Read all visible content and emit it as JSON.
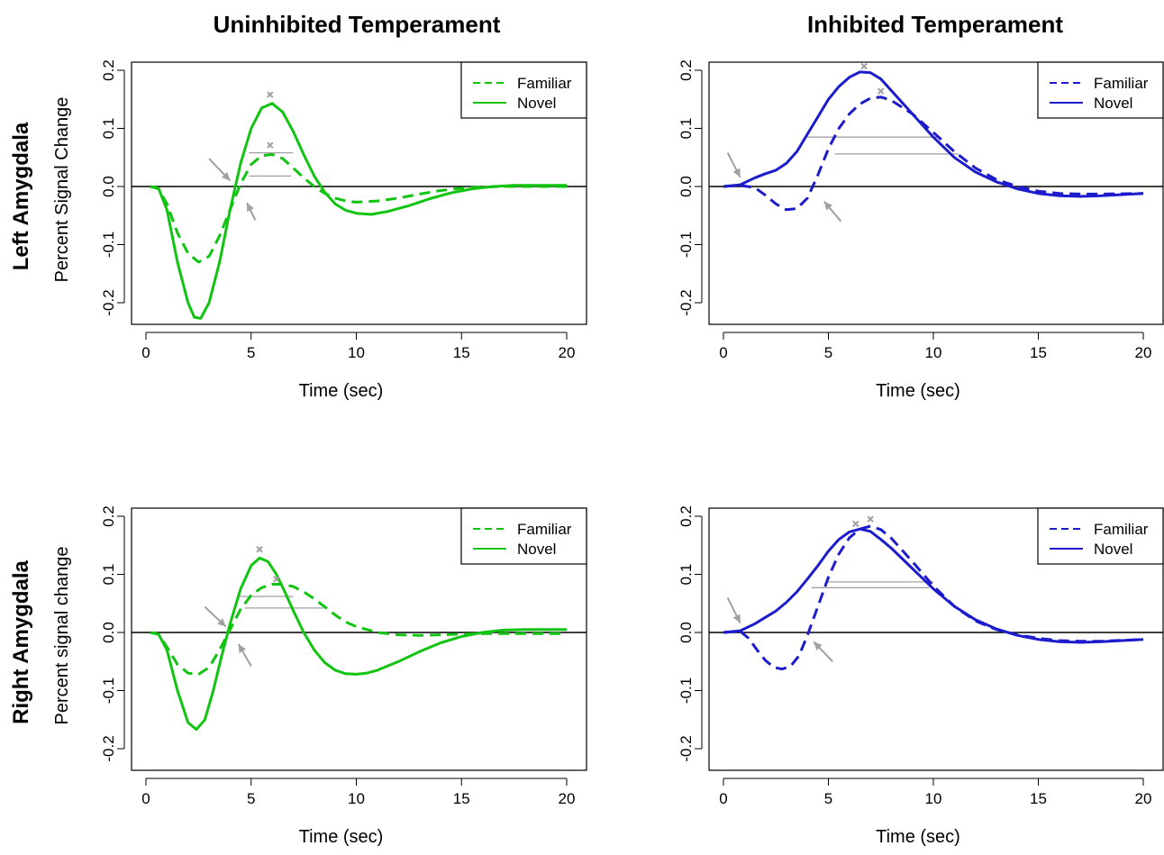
{
  "colors": {
    "green": "#11c411",
    "blue": "#1c1ccc",
    "annotation_gray": "#a0a0a0",
    "axis": "#000000",
    "background": "#ffffff"
  },
  "figure": {
    "column_titles": [
      "Uninhibited Temperament",
      "Inhibited Temperament"
    ],
    "row_titles": [
      "Left Amygdala",
      "Right Amygdala"
    ],
    "ylabels": [
      "Percent Signal Change",
      "Percent signal change"
    ]
  },
  "chart_data": [
    {
      "type": "line",
      "panel": "top-left",
      "color": "green",
      "xlabel": "Time (sec)",
      "ylabel": "Percent Signal Change",
      "xlim": [
        0,
        20
      ],
      "ylim": [
        -0.2,
        0.2
      ],
      "xticks": [
        "0",
        "5",
        "10",
        "15",
        "20"
      ],
      "yticks": [
        "-0.2",
        "-0.1",
        "0.0",
        "0.1",
        "0.2"
      ],
      "zero_line": true,
      "legend": {
        "position": "top-right",
        "entries": [
          "Familiar",
          "Novel"
        ]
      },
      "series": [
        {
          "name": "Familiar",
          "dash": "dashed",
          "x": [
            0.2,
            0.6,
            1.0,
            1.5,
            2.0,
            2.5,
            3.0,
            3.5,
            4.0,
            4.5,
            5.0,
            5.5,
            6.0,
            6.5,
            7.0,
            7.5,
            8.0,
            8.5,
            9.0,
            9.5,
            10.0,
            11.0,
            12.0,
            13.0,
            14.0,
            15.0,
            16.0,
            17.0,
            18.0,
            20.0
          ],
          "y": [
            0.0,
            -0.004,
            -0.03,
            -0.08,
            -0.115,
            -0.13,
            -0.12,
            -0.085,
            -0.04,
            0.005,
            0.038,
            0.053,
            0.055,
            0.048,
            0.032,
            0.015,
            0.0,
            -0.012,
            -0.02,
            -0.025,
            -0.027,
            -0.025,
            -0.02,
            -0.013,
            -0.007,
            -0.003,
            -0.001,
            0.0,
            0.0,
            0.0
          ]
        },
        {
          "name": "Novel",
          "dash": "solid",
          "x": [
            0.2,
            0.6,
            1.0,
            1.5,
            2.0,
            2.3,
            2.6,
            3.0,
            3.5,
            4.0,
            4.5,
            5.0,
            5.5,
            6.0,
            6.5,
            7.0,
            7.5,
            8.0,
            8.5,
            9.0,
            9.5,
            10.0,
            10.7,
            11.5,
            12.5,
            13.5,
            14.5,
            15.5,
            16.5,
            17.5,
            20.0
          ],
          "y": [
            0.0,
            -0.003,
            -0.04,
            -0.13,
            -0.2,
            -0.225,
            -0.227,
            -0.2,
            -0.13,
            -0.04,
            0.04,
            0.1,
            0.135,
            0.143,
            0.128,
            0.095,
            0.055,
            0.018,
            -0.01,
            -0.03,
            -0.041,
            -0.046,
            -0.048,
            -0.043,
            -0.033,
            -0.021,
            -0.011,
            -0.004,
            0.0,
            0.002,
            0.002
          ]
        }
      ],
      "annotations": {
        "peaks": [
          {
            "x": 5.9,
            "y": 0.158
          },
          {
            "x": 5.9,
            "y": 0.071
          }
        ],
        "hlines": [
          {
            "x1": 4.9,
            "x2": 7.0,
            "y": 0.058
          },
          {
            "x1": 4.9,
            "x2": 6.9,
            "y": 0.018
          }
        ],
        "arrows": [
          {
            "x1": 3.0,
            "y1": 0.048,
            "x2": 4.0,
            "y2": 0.01
          },
          {
            "x1": 5.2,
            "y1": -0.058,
            "x2": 4.8,
            "y2": -0.028
          }
        ]
      }
    },
    {
      "type": "line",
      "panel": "top-right",
      "color": "blue",
      "xlabel": "Time (sec)",
      "ylabel": "",
      "xlim": [
        0,
        20
      ],
      "ylim": [
        -0.2,
        0.2
      ],
      "xticks": [
        "0",
        "5",
        "10",
        "15",
        "20"
      ],
      "yticks": [
        "-0.2",
        "-0.1",
        "0.0",
        "0.1",
        "0.2"
      ],
      "zero_line": true,
      "legend": {
        "position": "top-right",
        "entries": [
          "Familiar",
          "Novel"
        ]
      },
      "series": [
        {
          "name": "Familiar",
          "dash": "dashed",
          "x": [
            0.0,
            0.8,
            1.5,
            2.0,
            2.5,
            3.0,
            3.5,
            4.0,
            4.5,
            5.0,
            5.5,
            6.0,
            6.5,
            7.0,
            7.5,
            8.0,
            9.0,
            10.0,
            11.0,
            12.0,
            13.0,
            14.0,
            15.0,
            16.0,
            17.0,
            18.0,
            20.0
          ],
          "y": [
            0.0,
            0.002,
            -0.002,
            -0.015,
            -0.03,
            -0.04,
            -0.038,
            -0.02,
            0.02,
            0.065,
            0.1,
            0.125,
            0.142,
            0.152,
            0.154,
            0.148,
            0.125,
            0.093,
            0.06,
            0.032,
            0.012,
            0.0,
            -0.008,
            -0.012,
            -0.013,
            -0.013,
            -0.012
          ]
        },
        {
          "name": "Novel",
          "dash": "solid",
          "x": [
            0.0,
            0.8,
            1.5,
            2.0,
            2.5,
            3.0,
            3.5,
            4.0,
            4.5,
            5.0,
            5.5,
            6.0,
            6.5,
            7.0,
            7.5,
            8.0,
            9.0,
            10.0,
            11.0,
            12.0,
            13.0,
            14.0,
            15.0,
            16.0,
            17.0,
            18.0,
            20.0
          ],
          "y": [
            0.0,
            0.003,
            0.015,
            0.022,
            0.028,
            0.04,
            0.06,
            0.09,
            0.12,
            0.15,
            0.172,
            0.188,
            0.197,
            0.196,
            0.185,
            0.165,
            0.125,
            0.085,
            0.05,
            0.025,
            0.008,
            -0.004,
            -0.012,
            -0.016,
            -0.017,
            -0.016,
            -0.012
          ]
        }
      ],
      "annotations": {
        "peaks": [
          {
            "x": 6.7,
            "y": 0.207
          },
          {
            "x": 7.5,
            "y": 0.164
          }
        ],
        "hlines": [
          {
            "x1": 4.0,
            "x2": 10.2,
            "y": 0.085
          },
          {
            "x1": 5.3,
            "x2": 11.2,
            "y": 0.056
          }
        ],
        "arrows": [
          {
            "x1": 0.2,
            "y1": 0.058,
            "x2": 0.8,
            "y2": 0.016
          },
          {
            "x1": 5.6,
            "y1": -0.06,
            "x2": 4.8,
            "y2": -0.026
          }
        ]
      }
    },
    {
      "type": "line",
      "panel": "bottom-left",
      "color": "green",
      "xlabel": "Time (sec)",
      "ylabel": "Percent signal change",
      "xlim": [
        0,
        20
      ],
      "ylim": [
        -0.2,
        0.2
      ],
      "xticks": [
        "0",
        "5",
        "10",
        "15",
        "20"
      ],
      "yticks": [
        "-0.2",
        "-0.1",
        "0.0",
        "0.1",
        "0.2"
      ],
      "zero_line": true,
      "legend": {
        "position": "top-right",
        "entries": [
          "Familiar",
          "Novel"
        ]
      },
      "series": [
        {
          "name": "Familiar",
          "dash": "dashed",
          "x": [
            0.2,
            0.6,
            1.0,
            1.5,
            2.0,
            2.5,
            3.0,
            3.5,
            4.0,
            4.5,
            5.0,
            5.5,
            6.0,
            6.5,
            7.0,
            7.5,
            8.0,
            8.5,
            9.0,
            9.5,
            10.0,
            11.0,
            12.0,
            13.0,
            14.0,
            15.0,
            16.0,
            17.0,
            20.0
          ],
          "y": [
            0.0,
            -0.003,
            -0.025,
            -0.055,
            -0.07,
            -0.072,
            -0.06,
            -0.03,
            0.005,
            0.04,
            0.064,
            0.077,
            0.083,
            0.083,
            0.079,
            0.07,
            0.058,
            0.044,
            0.03,
            0.018,
            0.01,
            0.0,
            -0.004,
            -0.005,
            -0.004,
            -0.003,
            -0.002,
            -0.002,
            -0.002
          ]
        },
        {
          "name": "Novel",
          "dash": "solid",
          "x": [
            0.2,
            0.6,
            1.0,
            1.5,
            2.0,
            2.4,
            2.8,
            3.2,
            3.6,
            4.0,
            4.5,
            5.0,
            5.4,
            5.8,
            6.2,
            6.6,
            7.0,
            7.5,
            8.0,
            8.5,
            9.0,
            9.5,
            10.0,
            10.5,
            11.0,
            12.0,
            13.0,
            14.0,
            15.0,
            16.0,
            17.0,
            18.0,
            20.0
          ],
          "y": [
            0.0,
            -0.003,
            -0.03,
            -0.1,
            -0.155,
            -0.167,
            -0.15,
            -0.1,
            -0.04,
            0.015,
            0.075,
            0.115,
            0.128,
            0.122,
            0.1,
            0.07,
            0.038,
            0.0,
            -0.03,
            -0.052,
            -0.065,
            -0.071,
            -0.072,
            -0.07,
            -0.065,
            -0.05,
            -0.033,
            -0.018,
            -0.007,
            0.0,
            0.004,
            0.005,
            0.005
          ]
        }
      ],
      "annotations": {
        "peaks": [
          {
            "x": 5.4,
            "y": 0.143
          },
          {
            "x": 6.2,
            "y": 0.092
          }
        ],
        "hlines": [
          {
            "x1": 4.4,
            "x2": 7.0,
            "y": 0.062
          },
          {
            "x1": 4.7,
            "x2": 8.5,
            "y": 0.042
          }
        ],
        "arrows": [
          {
            "x1": 2.8,
            "y1": 0.044,
            "x2": 3.8,
            "y2": 0.01
          },
          {
            "x1": 5.0,
            "y1": -0.058,
            "x2": 4.4,
            "y2": -0.02
          }
        ]
      }
    },
    {
      "type": "line",
      "panel": "bottom-right",
      "color": "blue",
      "xlabel": "Time (sec)",
      "ylabel": "",
      "xlim": [
        0,
        20
      ],
      "ylim": [
        -0.2,
        0.2
      ],
      "xticks": [
        "0",
        "5",
        "10",
        "15",
        "20"
      ],
      "yticks": [
        "-0.2",
        "-0.1",
        "0.0",
        "0.1",
        "0.2"
      ],
      "zero_line": true,
      "legend": {
        "position": "top-right",
        "entries": [
          "Familiar",
          "Novel"
        ]
      },
      "series": [
        {
          "name": "Familiar",
          "dash": "dashed",
          "x": [
            0.0,
            0.8,
            1.2,
            1.6,
            2.0,
            2.4,
            2.8,
            3.2,
            3.6,
            4.0,
            4.5,
            5.0,
            5.5,
            6.0,
            6.5,
            7.0,
            7.5,
            8.0,
            9.0,
            10.0,
            11.0,
            12.0,
            13.0,
            14.0,
            15.0,
            16.0,
            17.0,
            18.0,
            20.0
          ],
          "y": [
            0.0,
            0.002,
            -0.01,
            -0.03,
            -0.048,
            -0.06,
            -0.063,
            -0.058,
            -0.04,
            -0.005,
            0.045,
            0.095,
            0.135,
            0.163,
            0.178,
            0.183,
            0.177,
            0.162,
            0.122,
            0.08,
            0.045,
            0.02,
            0.005,
            -0.004,
            -0.01,
            -0.014,
            -0.015,
            -0.015,
            -0.012
          ]
        },
        {
          "name": "Novel",
          "dash": "solid",
          "x": [
            0.0,
            0.8,
            1.5,
            2.0,
            2.5,
            3.0,
            3.5,
            4.0,
            4.5,
            5.0,
            5.5,
            6.0,
            6.5,
            7.0,
            7.5,
            8.0,
            9.0,
            10.0,
            11.0,
            12.0,
            13.0,
            14.0,
            15.0,
            16.0,
            17.0,
            18.0,
            20.0
          ],
          "y": [
            0.0,
            0.003,
            0.015,
            0.026,
            0.037,
            0.052,
            0.07,
            0.092,
            0.115,
            0.14,
            0.16,
            0.173,
            0.178,
            0.174,
            0.16,
            0.145,
            0.11,
            0.075,
            0.045,
            0.022,
            0.006,
            -0.005,
            -0.012,
            -0.016,
            -0.017,
            -0.016,
            -0.012
          ]
        }
      ],
      "annotations": {
        "peaks": [
          {
            "x": 6.3,
            "y": 0.187
          },
          {
            "x": 7.0,
            "y": 0.195
          }
        ],
        "hlines": [
          {
            "x1": 5.0,
            "x2": 10.0,
            "y": 0.087
          },
          {
            "x1": 4.2,
            "x2": 9.8,
            "y": 0.077
          }
        ],
        "arrows": [
          {
            "x1": 0.2,
            "y1": 0.06,
            "x2": 0.8,
            "y2": 0.016
          },
          {
            "x1": 5.2,
            "y1": -0.05,
            "x2": 4.3,
            "y2": -0.016
          }
        ]
      }
    }
  ]
}
